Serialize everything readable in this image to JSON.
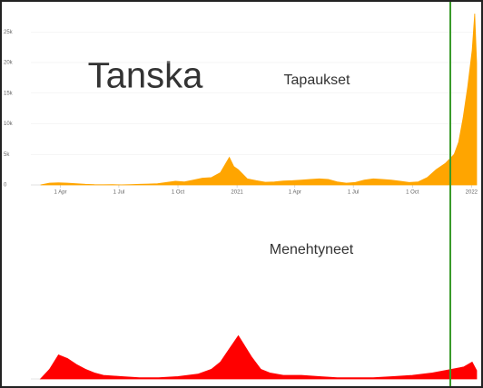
{
  "chart_data": [
    {
      "type": "area",
      "title": "Tanska",
      "subtitle": "Tapaukset",
      "x": [
        "2020-03-01",
        "2020-03-15",
        "2020-03-29",
        "2020-04-12",
        "2020-04-26",
        "2020-05-10",
        "2020-05-24",
        "2020-06-07",
        "2020-06-21",
        "2020-07-05",
        "2020-07-19",
        "2020-08-02",
        "2020-08-16",
        "2020-08-30",
        "2020-09-13",
        "2020-09-27",
        "2020-10-11",
        "2020-10-25",
        "2020-11-08",
        "2020-11-22",
        "2020-12-06",
        "2020-12-20",
        "2020-12-27",
        "2021-01-03",
        "2021-01-17",
        "2021-01-31",
        "2021-02-14",
        "2021-02-28",
        "2021-03-14",
        "2021-03-28",
        "2021-04-11",
        "2021-04-25",
        "2021-05-09",
        "2021-05-23",
        "2021-06-06",
        "2021-06-20",
        "2021-07-04",
        "2021-07-18",
        "2021-08-01",
        "2021-08-15",
        "2021-08-29",
        "2021-09-12",
        "2021-09-26",
        "2021-10-10",
        "2021-10-24",
        "2021-11-07",
        "2021-11-21",
        "2021-12-05",
        "2021-12-12",
        "2021-12-19",
        "2021-12-26",
        "2022-01-02",
        "2022-01-06",
        "2022-01-09"
      ],
      "series": [
        {
          "name": "Tapaukset",
          "color": "#ffa500",
          "values": [
            0,
            300,
            350,
            300,
            200,
            100,
            50,
            40,
            50,
            20,
            50,
            100,
            150,
            200,
            400,
            600,
            500,
            800,
            1100,
            1200,
            2000,
            4500,
            3000,
            2500,
            1000,
            700,
            450,
            500,
            650,
            700,
            800,
            900,
            1000,
            900,
            500,
            300,
            400,
            800,
            1000,
            900,
            800,
            600,
            400,
            500,
            1200,
            2500,
            3500,
            5000,
            7000,
            11000,
            16000,
            22000,
            28000,
            20000
          ]
        }
      ],
      "xlim": [
        "2020-02-15",
        "2022-01-09"
      ],
      "xticks": [
        {
          "value": "2020-04-01",
          "label": "1 Apr"
        },
        {
          "value": "2020-07-01",
          "label": "1 Jul"
        },
        {
          "value": "2020-10-01",
          "label": "1 Oct"
        },
        {
          "value": "2021-01-01",
          "label": "2021"
        },
        {
          "value": "2021-04-01",
          "label": "1 Apr"
        },
        {
          "value": "2021-07-01",
          "label": "1 Jul"
        },
        {
          "value": "2021-10-01",
          "label": "1 Oct"
        },
        {
          "value": "2022-01-01",
          "label": "2022"
        }
      ],
      "ylim": [
        0,
        28000
      ],
      "yticks": [
        {
          "value": 0,
          "label": "0"
        },
        {
          "value": 5000,
          "label": "5k"
        },
        {
          "value": 10000,
          "label": "10k"
        },
        {
          "value": 15000,
          "label": "15k"
        },
        {
          "value": 20000,
          "label": "20k"
        },
        {
          "value": 25000,
          "label": "25k"
        }
      ],
      "grid": true
    },
    {
      "type": "area",
      "subtitle": "Menehtyneet",
      "x": [
        "2020-03-01",
        "2020-03-15",
        "2020-03-29",
        "2020-04-12",
        "2020-04-26",
        "2020-05-10",
        "2020-05-24",
        "2020-06-07",
        "2020-07-05",
        "2020-08-02",
        "2020-09-01",
        "2020-10-01",
        "2020-11-01",
        "2020-11-22",
        "2020-12-06",
        "2020-12-20",
        "2021-01-03",
        "2021-01-10",
        "2021-01-24",
        "2021-02-07",
        "2021-02-21",
        "2021-03-14",
        "2021-04-11",
        "2021-05-09",
        "2021-06-06",
        "2021-07-04",
        "2021-08-01",
        "2021-09-01",
        "2021-10-01",
        "2021-11-01",
        "2021-12-01",
        "2021-12-20",
        "2022-01-02",
        "2022-01-09"
      ],
      "series": [
        {
          "name": "Menehtyneet",
          "color": "#ff0000",
          "values": [
            0,
            8,
            20,
            17,
            12,
            8,
            5,
            3,
            2,
            1,
            1,
            2,
            4,
            8,
            14,
            25,
            36,
            30,
            18,
            8,
            5,
            3,
            3,
            2,
            1,
            1,
            1,
            2,
            3,
            5,
            8,
            10,
            14,
            7
          ]
        }
      ],
      "xlim": [
        "2020-02-15",
        "2022-01-09"
      ],
      "ylim": [
        0,
        40
      ]
    }
  ]
}
